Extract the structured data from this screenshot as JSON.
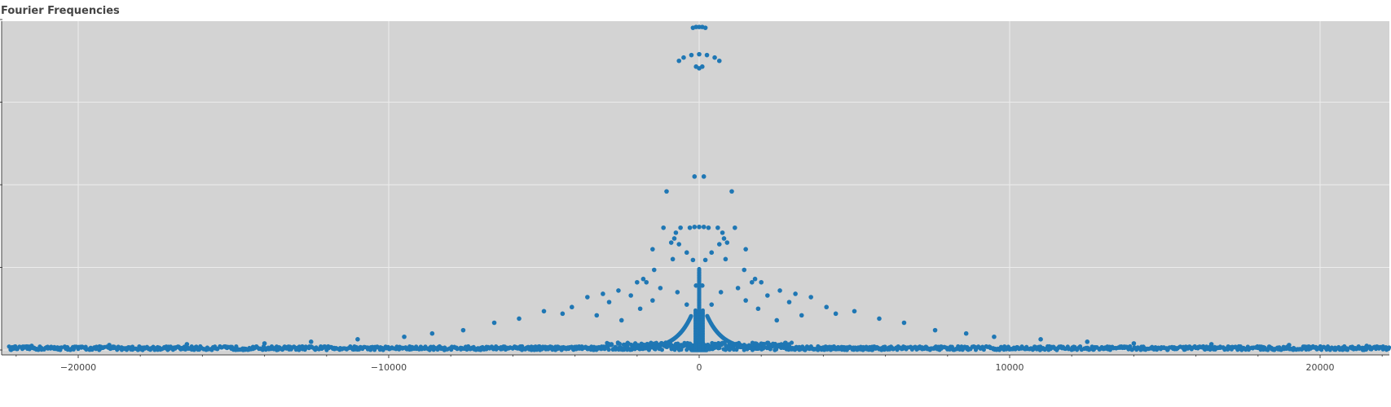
{
  "chart_data": {
    "type": "scatter",
    "title": "Fourier Frequencies",
    "xlabel": "",
    "ylabel": "",
    "xlim": [
      -22500,
      22500
    ],
    "ylim": [
      -0.1,
      4.1
    ],
    "x_ticks": [
      {
        "value": -20000,
        "label": "−20000"
      },
      {
        "value": -10000,
        "label": "−10000"
      },
      {
        "value": 0,
        "label": "0"
      },
      {
        "value": 10000,
        "label": "10000"
      },
      {
        "value": 20000,
        "label": "20000"
      }
    ],
    "y_tick_values": [
      0,
      1,
      2,
      3,
      4
    ],
    "y_tick_labels_shown": false,
    "grid": true,
    "legend": "none",
    "series": [
      {
        "color": "#1f77b4",
        "points": [
          [
            -200,
            3.9
          ],
          [
            -100,
            3.91
          ],
          [
            0,
            3.91
          ],
          [
            100,
            3.91
          ],
          [
            200,
            3.9
          ],
          [
            -650,
            3.5
          ],
          [
            -500,
            3.54
          ],
          [
            -250,
            3.57
          ],
          [
            0,
            3.58
          ],
          [
            250,
            3.57
          ],
          [
            500,
            3.54
          ],
          [
            650,
            3.5
          ],
          [
            -100,
            3.43
          ],
          [
            0,
            3.41
          ],
          [
            100,
            3.43
          ],
          [
            -150,
            2.1
          ],
          [
            150,
            2.1
          ],
          [
            -1050,
            1.92
          ],
          [
            1050,
            1.92
          ],
          [
            -1150,
            1.48
          ],
          [
            1150,
            1.48
          ],
          [
            -600,
            1.48
          ],
          [
            -300,
            1.48
          ],
          [
            -150,
            1.49
          ],
          [
            0,
            1.49
          ],
          [
            150,
            1.49
          ],
          [
            300,
            1.48
          ],
          [
            600,
            1.48
          ],
          [
            -750,
            1.42
          ],
          [
            750,
            1.42
          ],
          [
            -800,
            1.35
          ],
          [
            800,
            1.35
          ],
          [
            -900,
            1.3
          ],
          [
            900,
            1.3
          ],
          [
            -1500,
            1.22
          ],
          [
            1500,
            1.22
          ],
          [
            -650,
            1.28
          ],
          [
            650,
            1.28
          ],
          [
            -400,
            1.18
          ],
          [
            400,
            1.18
          ],
          [
            -850,
            1.1
          ],
          [
            850,
            1.1
          ],
          [
            -200,
            1.09
          ],
          [
            200,
            1.09
          ],
          [
            -1450,
            0.97
          ],
          [
            1450,
            0.97
          ],
          [
            -1800,
            0.86
          ],
          [
            1800,
            0.86
          ],
          [
            -2000,
            0.82
          ],
          [
            2000,
            0.82
          ],
          [
            -1700,
            0.82
          ],
          [
            1700,
            0.82
          ],
          [
            -100,
            0.78
          ],
          [
            100,
            0.78
          ],
          [
            -1250,
            0.75
          ],
          [
            1250,
            0.75
          ],
          [
            -2600,
            0.72
          ],
          [
            2600,
            0.72
          ],
          [
            -3100,
            0.68
          ],
          [
            3100,
            0.68
          ],
          [
            -700,
            0.7
          ],
          [
            700,
            0.7
          ],
          [
            -2200,
            0.66
          ],
          [
            2200,
            0.66
          ],
          [
            -3600,
            0.64
          ],
          [
            3600,
            0.64
          ],
          [
            -1500,
            0.6
          ],
          [
            1500,
            0.6
          ],
          [
            -2900,
            0.58
          ],
          [
            2900,
            0.58
          ],
          [
            -4100,
            0.52
          ],
          [
            4100,
            0.52
          ],
          [
            -400,
            0.55
          ],
          [
            400,
            0.55
          ],
          [
            -1900,
            0.5
          ],
          [
            1900,
            0.5
          ],
          [
            -5000,
            0.47
          ],
          [
            5000,
            0.47
          ],
          [
            -4400,
            0.44
          ],
          [
            4400,
            0.44
          ],
          [
            -3300,
            0.42
          ],
          [
            3300,
            0.42
          ],
          [
            -5800,
            0.38
          ],
          [
            5800,
            0.38
          ],
          [
            -6600,
            0.33
          ],
          [
            6600,
            0.33
          ],
          [
            -2500,
            0.36
          ],
          [
            2500,
            0.36
          ],
          [
            -7600,
            0.24
          ],
          [
            7600,
            0.24
          ],
          [
            -8600,
            0.2
          ],
          [
            8600,
            0.2
          ],
          [
            -9500,
            0.16
          ],
          [
            9500,
            0.16
          ],
          [
            -11000,
            0.13
          ],
          [
            11000,
            0.13
          ],
          [
            -12500,
            0.1
          ],
          [
            12500,
            0.1
          ],
          [
            -14000,
            0.08
          ],
          [
            14000,
            0.08
          ],
          [
            -16500,
            0.07
          ],
          [
            16500,
            0.07
          ],
          [
            -19000,
            0.06
          ],
          [
            19000,
            0.06
          ],
          [
            -21500,
            0.05
          ],
          [
            21500,
            0.05
          ]
        ]
      }
    ]
  }
}
